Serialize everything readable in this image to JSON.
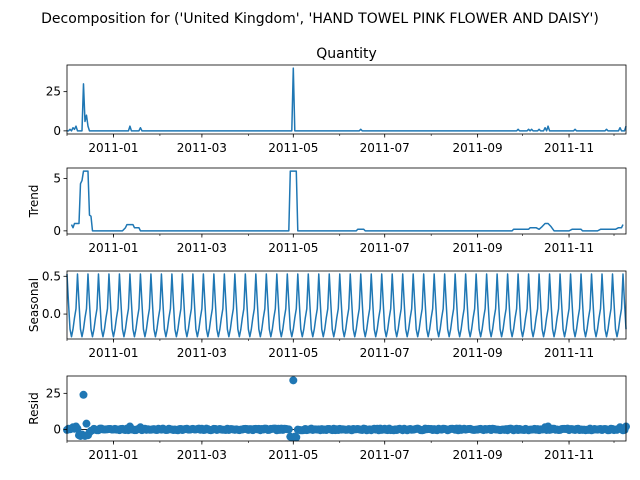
{
  "figure": {
    "suptitle": "Decomposition for ('United Kingdom', 'HAND TOWEL PINK FLOWER AND DAISY')"
  },
  "colors": {
    "line": "#1f77b4",
    "axis": "#000000",
    "background": "#ffffff"
  },
  "chart_data": [
    {
      "type": "line",
      "title": "Quantity",
      "ylabel": "",
      "x_range": [
        "2010-12-01",
        "2011-12-09"
      ],
      "ylim": [
        -2,
        42
      ],
      "yticks": [
        0,
        25
      ],
      "xtick_labels": [
        "2011-01",
        "2011-03",
        "2011-05",
        "2011-07",
        "2011-09",
        "2011-11"
      ],
      "grid": false,
      "baseline": 0,
      "spikes": [
        {
          "x": "2010-12-03",
          "y": 1
        },
        {
          "x": "2010-12-05",
          "y": 2
        },
        {
          "x": "2010-12-06",
          "y": 1
        },
        {
          "x": "2010-12-07",
          "y": 3
        },
        {
          "x": "2010-12-12",
          "y": 30
        },
        {
          "x": "2010-12-13",
          "y": 6
        },
        {
          "x": "2010-12-14",
          "y": 10
        },
        {
          "x": "2010-12-15",
          "y": 3
        },
        {
          "x": "2011-01-12",
          "y": 3
        },
        {
          "x": "2011-01-19",
          "y": 2
        },
        {
          "x": "2011-05-01",
          "y": 40
        },
        {
          "x": "2011-06-15",
          "y": 1
        },
        {
          "x": "2011-09-28",
          "y": 1
        },
        {
          "x": "2011-10-05",
          "y": 1
        },
        {
          "x": "2011-10-07",
          "y": 1
        },
        {
          "x": "2011-10-12",
          "y": 1
        },
        {
          "x": "2011-10-16",
          "y": 2
        },
        {
          "x": "2011-10-18",
          "y": 3
        },
        {
          "x": "2011-11-05",
          "y": 1
        },
        {
          "x": "2011-11-26",
          "y": 1
        },
        {
          "x": "2011-12-05",
          "y": 2
        },
        {
          "x": "2011-12-09",
          "y": 3
        }
      ]
    },
    {
      "type": "line",
      "title": "",
      "ylabel": "Trend",
      "x_range": [
        "2010-12-01",
        "2011-12-09"
      ],
      "ylim": [
        -0.3,
        6.0
      ],
      "yticks": [
        0,
        5
      ],
      "xtick_labels": [
        "2011-01",
        "2011-03",
        "2011-05",
        "2011-07",
        "2011-09",
        "2011-11"
      ],
      "grid": false,
      "points": [
        {
          "x": "2010-12-04",
          "y": 0.6
        },
        {
          "x": "2010-12-05",
          "y": 0.3
        },
        {
          "x": "2010-12-06",
          "y": 0.7
        },
        {
          "x": "2010-12-09",
          "y": 0.7
        },
        {
          "x": "2010-12-10",
          "y": 4.5
        },
        {
          "x": "2010-12-11",
          "y": 4.8
        },
        {
          "x": "2010-12-12",
          "y": 5.7
        },
        {
          "x": "2010-12-15",
          "y": 5.7
        },
        {
          "x": "2010-12-16",
          "y": 1.5
        },
        {
          "x": "2010-12-17",
          "y": 1.4
        },
        {
          "x": "2010-12-18",
          "y": 0.0
        },
        {
          "x": "2011-01-07",
          "y": 0.0
        },
        {
          "x": "2011-01-09",
          "y": 0.3
        },
        {
          "x": "2011-01-10",
          "y": 0.6
        },
        {
          "x": "2011-01-14",
          "y": 0.6
        },
        {
          "x": "2011-01-15",
          "y": 0.3
        },
        {
          "x": "2011-01-18",
          "y": 0.3
        },
        {
          "x": "2011-01-19",
          "y": 0.0
        },
        {
          "x": "2011-04-28",
          "y": 0.0
        },
        {
          "x": "2011-04-29",
          "y": 5.7
        },
        {
          "x": "2011-05-03",
          "y": 5.7
        },
        {
          "x": "2011-05-04",
          "y": 0.0
        },
        {
          "x": "2011-06-12",
          "y": 0.0
        },
        {
          "x": "2011-06-13",
          "y": 0.15
        },
        {
          "x": "2011-06-17",
          "y": 0.15
        },
        {
          "x": "2011-06-18",
          "y": 0.0
        },
        {
          "x": "2011-09-24",
          "y": 0.0
        },
        {
          "x": "2011-09-25",
          "y": 0.15
        },
        {
          "x": "2011-10-05",
          "y": 0.15
        },
        {
          "x": "2011-10-06",
          "y": 0.3
        },
        {
          "x": "2011-10-10",
          "y": 0.3
        },
        {
          "x": "2011-10-12",
          "y": 0.15
        },
        {
          "x": "2011-10-14",
          "y": 0.4
        },
        {
          "x": "2011-10-16",
          "y": 0.7
        },
        {
          "x": "2011-10-18",
          "y": 0.7
        },
        {
          "x": "2011-10-20",
          "y": 0.4
        },
        {
          "x": "2011-10-22",
          "y": 0.0
        },
        {
          "x": "2011-11-01",
          "y": 0.0
        },
        {
          "x": "2011-11-03",
          "y": 0.15
        },
        {
          "x": "2011-11-09",
          "y": 0.15
        },
        {
          "x": "2011-11-10",
          "y": 0.0
        },
        {
          "x": "2011-11-20",
          "y": 0.0
        },
        {
          "x": "2011-11-22",
          "y": 0.15
        },
        {
          "x": "2011-12-02",
          "y": 0.15
        },
        {
          "x": "2011-12-04",
          "y": 0.3
        },
        {
          "x": "2011-12-06",
          "y": 0.3
        },
        {
          "x": "2011-12-07",
          "y": 0.6
        }
      ]
    },
    {
      "type": "line",
      "title": "",
      "ylabel": "Seasonal",
      "x_range": [
        "2010-12-01",
        "2011-12-09"
      ],
      "ylim": [
        -0.33,
        0.57
      ],
      "yticks": [
        0.0,
        0.5
      ],
      "ytick_labels": [
        "0.0",
        "0.5"
      ],
      "xtick_labels": [
        "2011-01",
        "2011-03",
        "2011-05",
        "2011-07",
        "2011-09",
        "2011-11"
      ],
      "grid": false,
      "period_days": 7,
      "cycle_values": [
        0.53,
        0.15,
        -0.2,
        -0.3,
        -0.2,
        -0.05,
        0.07
      ]
    },
    {
      "type": "scatter",
      "title": "",
      "ylabel": "Resid",
      "x_range": [
        "2010-12-01",
        "2011-12-09"
      ],
      "ylim": [
        -8,
        37
      ],
      "yticks": [
        0,
        25
      ],
      "xtick_labels": [
        "2011-01",
        "2011-03",
        "2011-05",
        "2011-07",
        "2011-09",
        "2011-11"
      ],
      "grid": false,
      "baseline_noise": 0.6,
      "points": [
        {
          "x": "2010-12-04",
          "y": 0.5
        },
        {
          "x": "2010-12-05",
          "y": 1.5
        },
        {
          "x": "2010-12-06",
          "y": 0.5
        },
        {
          "x": "2010-12-07",
          "y": 2.0
        },
        {
          "x": "2010-12-09",
          "y": -4.0
        },
        {
          "x": "2010-12-10",
          "y": -4.5
        },
        {
          "x": "2010-12-11",
          "y": -3.5
        },
        {
          "x": "2010-12-12",
          "y": 24.0
        },
        {
          "x": "2010-12-13",
          "y": -4.5
        },
        {
          "x": "2010-12-14",
          "y": 4.0
        },
        {
          "x": "2010-12-15",
          "y": -4.0
        },
        {
          "x": "2010-12-16",
          "y": -2.0
        },
        {
          "x": "2010-12-17",
          "y": -1.0
        },
        {
          "x": "2011-01-12",
          "y": 2.0
        },
        {
          "x": "2011-01-19",
          "y": 1.5
        },
        {
          "x": "2011-04-29",
          "y": -5.0
        },
        {
          "x": "2011-04-30",
          "y": -5.5
        },
        {
          "x": "2011-05-01",
          "y": 34.0
        },
        {
          "x": "2011-05-02",
          "y": -5.0
        },
        {
          "x": "2011-05-03",
          "y": -5.5
        },
        {
          "x": "2011-10-16",
          "y": 1.5
        },
        {
          "x": "2011-10-18",
          "y": 2.0
        },
        {
          "x": "2011-12-05",
          "y": 1.5
        },
        {
          "x": "2011-12-09",
          "y": 2.0
        }
      ]
    }
  ]
}
